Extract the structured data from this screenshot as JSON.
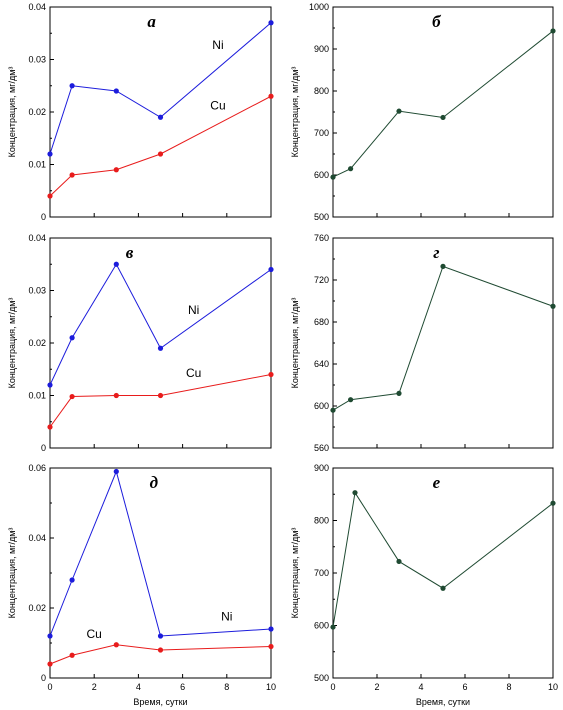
{
  "colors": {
    "ni": "#1c1cdc",
    "cu": "#e81c1c",
    "single": "#1f4a32",
    "axis": "#000000"
  },
  "chart_data": [
    {
      "type": "line",
      "panel_label": "а",
      "ylabel": "Концентрация, мг/дм³",
      "xlabel": "",
      "xlim": [
        0,
        10
      ],
      "ylim": [
        0,
        0.04
      ],
      "yticks": [
        "0",
        "0.01",
        "0.02",
        "0.03",
        "0.04"
      ],
      "xticks": [],
      "series": [
        {
          "name": "Ni",
          "color": "#1c1cdc",
          "x": [
            0,
            1,
            3,
            5,
            10
          ],
          "values": [
            0.012,
            0.025,
            0.024,
            0.019,
            0.037
          ]
        },
        {
          "name": "Cu",
          "color": "#e81c1c",
          "x": [
            0,
            1,
            3,
            5,
            10
          ],
          "values": [
            0.004,
            0.008,
            0.009,
            0.012,
            0.023
          ]
        }
      ]
    },
    {
      "type": "line",
      "panel_label": "б",
      "ylabel": "Концентрация, мг/дм³",
      "xlabel": "",
      "xlim": [
        0,
        10
      ],
      "ylim": [
        500,
        1000
      ],
      "yticks": [
        "500",
        "600",
        "700",
        "800",
        "900",
        "1000"
      ],
      "xticks": [],
      "series": [
        {
          "name": "",
          "color": "#1f4a32",
          "x": [
            0,
            0.8,
            3,
            5,
            10
          ],
          "values": [
            595,
            615,
            752,
            737,
            943
          ]
        }
      ]
    },
    {
      "type": "line",
      "panel_label": "в",
      "ylabel": "Концентрация, мг/дм³",
      "xlabel": "",
      "xlim": [
        0,
        10
      ],
      "ylim": [
        0,
        0.04
      ],
      "yticks": [
        "0",
        "0.01",
        "0.02",
        "0.03",
        "0.04"
      ],
      "xticks": [],
      "series": [
        {
          "name": "Ni",
          "color": "#1c1cdc",
          "x": [
            0,
            1,
            3,
            5,
            10
          ],
          "values": [
            0.012,
            0.021,
            0.035,
            0.019,
            0.034
          ]
        },
        {
          "name": "Cu",
          "color": "#e81c1c",
          "x": [
            0,
            1,
            3,
            5,
            10
          ],
          "values": [
            0.004,
            0.0098,
            0.01,
            0.01,
            0.014
          ]
        }
      ]
    },
    {
      "type": "line",
      "panel_label": "г",
      "ylabel": "Концентрация, мг/дм³",
      "xlabel": "",
      "xlim": [
        0,
        10
      ],
      "ylim": [
        560,
        760
      ],
      "yticks": [
        "560",
        "600",
        "640",
        "680",
        "720",
        "760"
      ],
      "xticks": [],
      "series": [
        {
          "name": "",
          "color": "#1f4a32",
          "x": [
            0,
            0.8,
            3,
            5,
            10
          ],
          "values": [
            596,
            606,
            612,
            733,
            695
          ]
        }
      ]
    },
    {
      "type": "line",
      "panel_label": "д",
      "ylabel": "Концентрация, мг/дм³",
      "xlabel": "Время, сутки",
      "xlim": [
        0,
        10
      ],
      "ylim": [
        0,
        0.06
      ],
      "yticks": [
        "0",
        "0.02",
        "0.04",
        "0.06"
      ],
      "xticks": [
        "0",
        "2",
        "4",
        "6",
        "8",
        "10"
      ],
      "series": [
        {
          "name": "Ni",
          "color": "#1c1cdc",
          "x": [
            0,
            1,
            3,
            5,
            10
          ],
          "values": [
            0.012,
            0.028,
            0.059,
            0.012,
            0.014
          ]
        },
        {
          "name": "Cu",
          "color": "#e81c1c",
          "x": [
            0,
            1,
            3,
            5,
            10
          ],
          "values": [
            0.004,
            0.0065,
            0.0095,
            0.008,
            0.009
          ]
        }
      ]
    },
    {
      "type": "line",
      "panel_label": "е",
      "ylabel": "Концентрация, мг/дм³",
      "xlabel": "Время, сутки",
      "xlim": [
        0,
        10
      ],
      "ylim": [
        500,
        900
      ],
      "yticks": [
        "500",
        "600",
        "700",
        "800",
        "900"
      ],
      "xticks": [
        "0",
        "2",
        "4",
        "6",
        "8",
        "10"
      ],
      "series": [
        {
          "name": "",
          "color": "#1f4a32",
          "x": [
            0,
            1,
            3,
            5,
            10
          ],
          "values": [
            597,
            853,
            722,
            671,
            833
          ]
        }
      ]
    }
  ]
}
